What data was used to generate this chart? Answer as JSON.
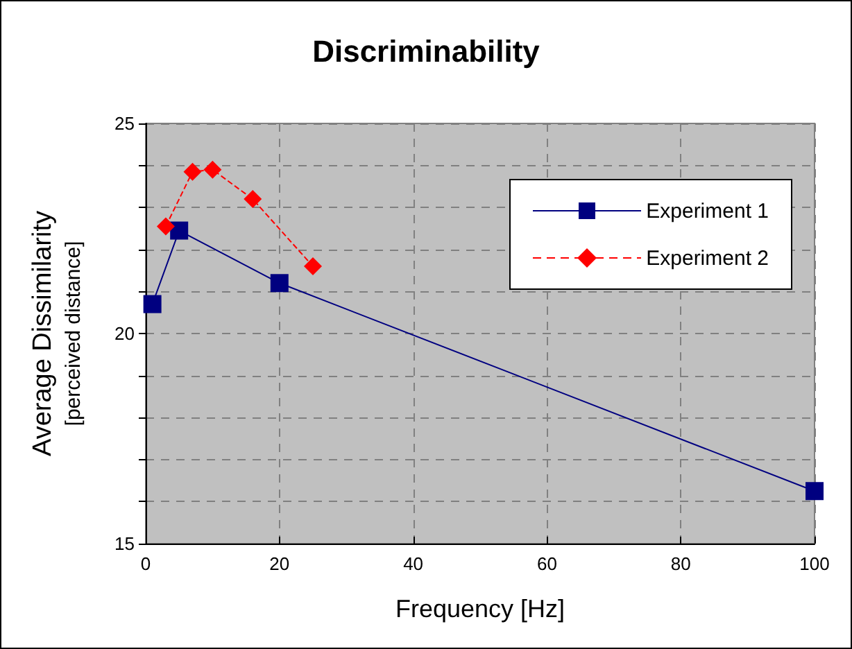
{
  "chart_data": {
    "type": "line",
    "title": "Discriminability",
    "xlabel": "Frequency [Hz]",
    "ylabel": "Average Dissimilarity\n[perceived distance]",
    "xlim": [
      0,
      100
    ],
    "xticks": [
      0,
      20,
      40,
      60,
      80,
      100
    ],
    "ylim": [
      15,
      25
    ],
    "yticks": [
      15,
      {
        "value": 16,
        "label": null
      },
      {
        "value": 17,
        "label": null
      },
      {
        "value": 18,
        "label": null
      },
      {
        "value": 19,
        "label": null
      },
      20,
      {
        "value": 21,
        "label": null
      },
      {
        "value": 22,
        "label": null
      },
      {
        "value": 23,
        "label": null
      },
      {
        "value": 24,
        "label": null
      },
      25
    ],
    "grid": true,
    "legend": "top right",
    "series": [
      {
        "name": "Experiment 1",
        "color": "#000080",
        "marker": "square",
        "line_style": "solid",
        "x": [
          1,
          5,
          20,
          100
        ],
        "values": [
          20.7,
          22.45,
          21.2,
          16.25
        ]
      },
      {
        "name": "Experiment 2",
        "color": "#ff0000",
        "marker": "diamond",
        "line_style": "dashed",
        "x": [
          3,
          7,
          10,
          16,
          25
        ],
        "values": [
          22.55,
          23.85,
          23.9,
          23.2,
          21.6
        ]
      }
    ]
  }
}
